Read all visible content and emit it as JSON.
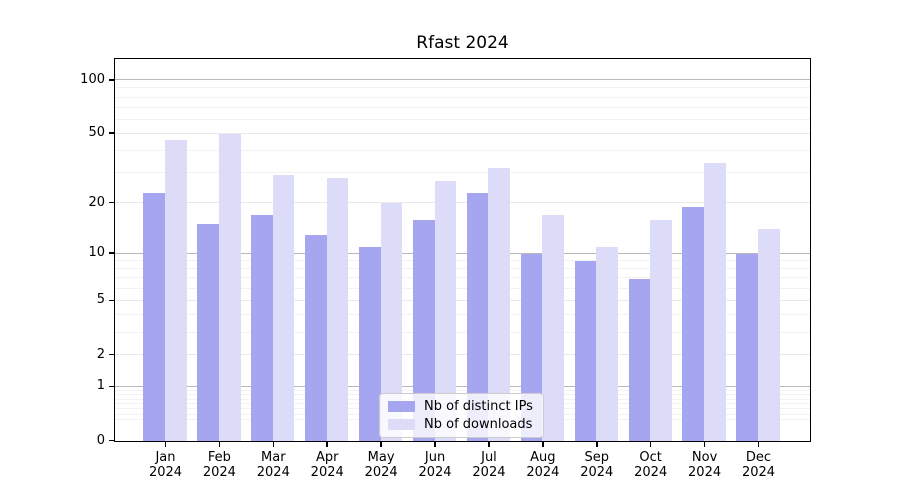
{
  "title": "Rfast 2024",
  "legend": {
    "items": [
      {
        "label": "Nb of distinct IPs",
        "series_key": "ips"
      },
      {
        "label": "Nb of downloads",
        "series_key": "downloads"
      }
    ]
  },
  "colors": {
    "ips_bar": "#a5a5f0",
    "downloads_bar": "#dcdcf8",
    "grid_major": "#e9e9e9",
    "grid_minor": "#f2f2f2",
    "grid_decade": "#b8b8b8",
    "axis": "#000000",
    "legend_border": "#cccccc"
  },
  "chart_data": {
    "type": "bar",
    "title": "Rfast 2024",
    "categories": [
      "Jan 2024",
      "Feb 2024",
      "Mar 2024",
      "Apr 2024",
      "May 2024",
      "Jun 2024",
      "Jul 2024",
      "Aug 2024",
      "Sep 2024",
      "Oct 2024",
      "Nov 2024",
      "Dec 2024"
    ],
    "month_labels": [
      "Jan",
      "Feb",
      "Mar",
      "Apr",
      "May",
      "Jun",
      "Jul",
      "Aug",
      "Sep",
      "Oct",
      "Nov",
      "Dec"
    ],
    "year_label": "2024",
    "series": [
      {
        "name": "Nb of distinct IPs",
        "values": [
          23,
          15,
          17,
          13,
          11,
          16,
          23,
          10,
          9,
          7,
          19,
          10
        ]
      },
      {
        "name": "Nb of downloads",
        "values": [
          46,
          50,
          29,
          28,
          20,
          27,
          32,
          17,
          11,
          16,
          34,
          14
        ]
      }
    ],
    "y_axis": {
      "scale": "log1p",
      "ticks": [
        0,
        1,
        2,
        5,
        10,
        20,
        50,
        100
      ],
      "decade_ticks": [
        1,
        10,
        100
      ],
      "minor_ticks": [
        0.3,
        0.4,
        0.5,
        0.6,
        0.7,
        0.8,
        0.9,
        3,
        4,
        6,
        7,
        8,
        9,
        30,
        40,
        60,
        70,
        80,
        90
      ],
      "max": 130
    },
    "grid": true,
    "legend_position": "lower center"
  }
}
